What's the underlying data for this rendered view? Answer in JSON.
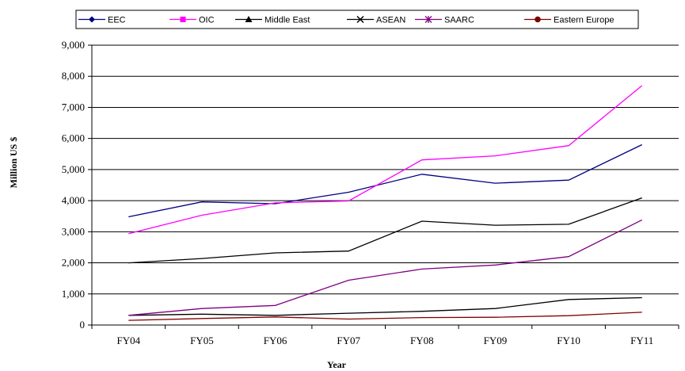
{
  "chart_data": {
    "type": "line",
    "title": "",
    "xlabel": "Year",
    "ylabel": "Million US $",
    "categories": [
      "FY04",
      "FY05",
      "FY06",
      "FY07",
      "FY08",
      "FY09",
      "FY10",
      "FY11"
    ],
    "ylim": [
      0,
      9000
    ],
    "yticks": [
      "0",
      "1,000",
      "2,000",
      "3,000",
      "4,000",
      "5,000",
      "6,000",
      "7,000",
      "8,000",
      "9,000"
    ],
    "ytick_values": [
      0,
      1000,
      2000,
      3000,
      4000,
      5000,
      6000,
      7000,
      8000,
      9000
    ],
    "grid": "horizontal",
    "legend_position": "top",
    "series": [
      {
        "name": "EEC",
        "color": "#000080",
        "marker": "diamond",
        "values": [
          3480,
          3960,
          3900,
          4270,
          4850,
          4560,
          4660,
          5800
        ]
      },
      {
        "name": "OIC",
        "color": "#ff00ff",
        "marker": "square",
        "values": [
          2940,
          3530,
          3930,
          3990,
          5310,
          5440,
          5770,
          7700
        ]
      },
      {
        "name": "Middle East",
        "color": "#000000",
        "marker": "triangle",
        "values": [
          2000,
          2140,
          2320,
          2380,
          3340,
          3210,
          3240,
          4090
        ]
      },
      {
        "name": "ASEAN",
        "color": "#000000",
        "marker": "x",
        "values": [
          310,
          350,
          310,
          380,
          440,
          530,
          820,
          880
        ]
      },
      {
        "name": "SAARC",
        "color": "#800080",
        "marker": "star",
        "values": [
          310,
          530,
          630,
          1440,
          1800,
          1930,
          2200,
          3380
        ]
      },
      {
        "name": "Eastern Europe",
        "color": "#800000",
        "marker": "circle",
        "values": [
          150,
          210,
          260,
          190,
          240,
          250,
          300,
          410
        ]
      }
    ]
  }
}
